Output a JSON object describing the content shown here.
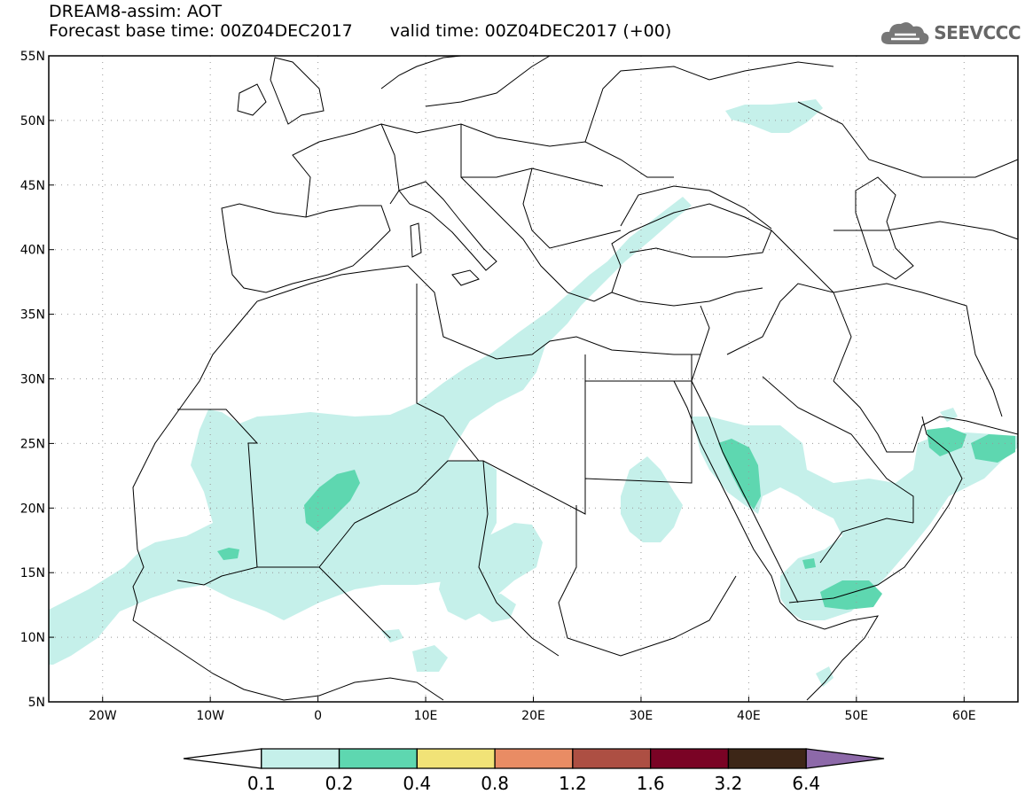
{
  "header": {
    "title": "DREAM8-assim: AOT",
    "base_time_label": "Forecast base time: 00Z04DEC2017",
    "valid_time_label": "valid time: 00Z04DEC2017 (+00)"
  },
  "logo": {
    "text": "SEEVCCC",
    "icon": "cloud-icon"
  },
  "map": {
    "lon_range": [
      -25,
      65
    ],
    "lat_range": [
      5,
      55
    ],
    "lat_ticks": [
      "5N",
      "10N",
      "15N",
      "20N",
      "25N",
      "30N",
      "35N",
      "40N",
      "45N",
      "50N",
      "55N"
    ],
    "lon_ticks": [
      "20W",
      "10W",
      "0",
      "10E",
      "20E",
      "30E",
      "40E",
      "50E",
      "60E"
    ],
    "grid": "dotted"
  },
  "colorbar": {
    "levels": [
      "0.1",
      "0.2",
      "0.4",
      "0.8",
      "1.2",
      "1.6",
      "3.2",
      "6.4"
    ],
    "colors": [
      "#ffffff",
      "#c5f0ea",
      "#5ed7b0",
      "#f1e377",
      "#e98c64",
      "#ad4f43",
      "#7a0325",
      "#3d2617",
      "#8d69a9"
    ]
  },
  "colors": {
    "band_light": "#c5f0ea",
    "band_mid": "#5ed7b0",
    "coast": "#000000"
  }
}
